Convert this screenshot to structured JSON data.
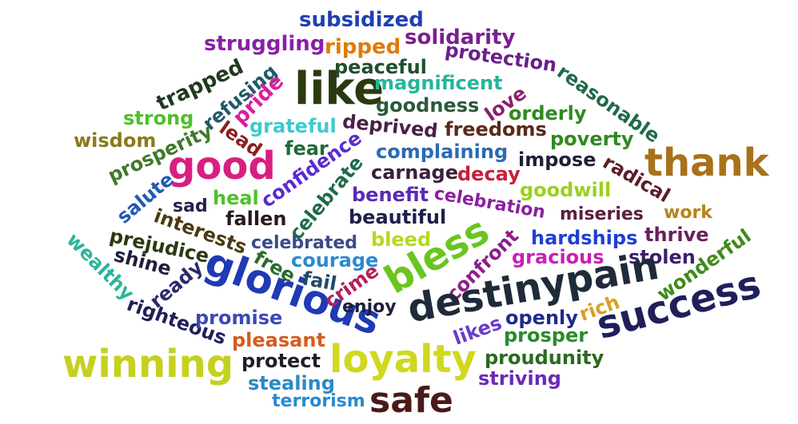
{
  "words": [
    {
      "text": "subsidized",
      "color": "#1f3fb5",
      "weight": 26
    },
    {
      "text": "struggling",
      "color": "#8a1fa8",
      "weight": 26
    },
    {
      "text": "ripped",
      "color": "#e07a0a",
      "weight": 26
    },
    {
      "text": "solidarity",
      "color": "#7a1f8f",
      "weight": 26
    },
    {
      "text": "peaceful",
      "color": "#1f4f2f",
      "weight": 24
    },
    {
      "text": "protection",
      "color": "#6a1f8a",
      "weight": 24
    },
    {
      "text": "like",
      "color": "#2a3a10",
      "weight": 56
    },
    {
      "text": "magnificent",
      "color": "#25b59a",
      "weight": 24
    },
    {
      "text": "goodness",
      "color": "#2a5a3a",
      "weight": 24
    },
    {
      "text": "trapped",
      "color": "#1f3a1f",
      "weight": 26
    },
    {
      "text": "refusing",
      "color": "#1f5a6a",
      "weight": 24
    },
    {
      "text": "pride",
      "color": "#d81fa0",
      "weight": 26
    },
    {
      "text": "reasonable",
      "color": "#1f6a4a",
      "weight": 24
    },
    {
      "text": "love",
      "color": "#8a1f6a",
      "weight": 24
    },
    {
      "text": "orderly",
      "color": "#2f8a1f",
      "weight": 24
    },
    {
      "text": "strong",
      "color": "#4fbf2a",
      "weight": 24
    },
    {
      "text": "grateful",
      "color": "#3fc9d0",
      "weight": 24
    },
    {
      "text": "deprived",
      "color": "#4a1f4a",
      "weight": 24
    },
    {
      "text": "freedoms",
      "color": "#5a2a1a",
      "weight": 24
    },
    {
      "text": "wisdom",
      "color": "#8a7a1a",
      "weight": 24
    },
    {
      "text": "lead",
      "color": "#8a1f1f",
      "weight": 24
    },
    {
      "text": "poverty",
      "color": "#2f8a1f",
      "weight": 24
    },
    {
      "text": "prosperity",
      "color": "#3f7a2a",
      "weight": 24
    },
    {
      "text": "fear",
      "color": "#1f6a3a",
      "weight": 24
    },
    {
      "text": "complaining",
      "color": "#2a6ab5",
      "weight": 24
    },
    {
      "text": "thank",
      "color": "#a8721a",
      "weight": 48
    },
    {
      "text": "good",
      "color": "#d81f80",
      "weight": 48
    },
    {
      "text": "confidence",
      "color": "#5a2ad0",
      "weight": 24
    },
    {
      "text": "impose",
      "color": "#1f1f3a",
      "weight": 24
    },
    {
      "text": "radical",
      "color": "#5a1f2a",
      "weight": 24
    },
    {
      "text": "carnage",
      "color": "#3a1f3a",
      "weight": 24
    },
    {
      "text": "decay",
      "color": "#c81f3a",
      "weight": 24
    },
    {
      "text": "salute",
      "color": "#1f5ab5",
      "weight": 24
    },
    {
      "text": "celebrate",
      "color": "#1f6a4a",
      "weight": 24
    },
    {
      "text": "benefit",
      "color": "#5a2ab5",
      "weight": 24
    },
    {
      "text": "goodwill",
      "color": "#9ad01f",
      "weight": 24
    },
    {
      "text": "sad",
      "color": "#2a1f4a",
      "weight": 22
    },
    {
      "text": "heal",
      "color": "#4fbf2a",
      "weight": 24
    },
    {
      "text": "celebration",
      "color": "#8a1fa0",
      "weight": 22
    },
    {
      "text": "interests",
      "color": "#4a3a10",
      "weight": 24
    },
    {
      "text": "fallen",
      "color": "#2a1a1a",
      "weight": 24
    },
    {
      "text": "beautiful",
      "color": "#1f1f4a",
      "weight": 24
    },
    {
      "text": "miseries",
      "color": "#5a1f3a",
      "weight": 22
    },
    {
      "text": "work",
      "color": "#b5841a",
      "weight": 22
    },
    {
      "text": "prejudice",
      "color": "#2a3a10",
      "weight": 24
    },
    {
      "text": "wealthy",
      "color": "#2ab59a",
      "weight": 24
    },
    {
      "text": "celebrated",
      "color": "#3a4a8a",
      "weight": 22
    },
    {
      "text": "bleed",
      "color": "#b5d81f",
      "weight": 24
    },
    {
      "text": "hardships",
      "color": "#1f3fd0",
      "weight": 24
    },
    {
      "text": "thrive",
      "color": "#6a1f5a",
      "weight": 24
    },
    {
      "text": "bless",
      "color": "#6ac51f",
      "weight": 48
    },
    {
      "text": "confront",
      "color": "#8a1f8a",
      "weight": 24
    },
    {
      "text": "wonderful",
      "color": "#3f8a1a",
      "weight": 24
    },
    {
      "text": "shine",
      "color": "#1f1f3a",
      "weight": 24
    },
    {
      "text": "free",
      "color": "#2a6a2a",
      "weight": 24
    },
    {
      "text": "courage",
      "color": "#2a8ad0",
      "weight": 24
    },
    {
      "text": "gracious",
      "color": "#c81fb5",
      "weight": 24
    },
    {
      "text": "stolen",
      "color": "#3a1f6a",
      "weight": 24
    },
    {
      "text": "ready",
      "color": "#2a2a6a",
      "weight": 24
    },
    {
      "text": "glorious",
      "color": "#1f3ab5",
      "weight": 50
    },
    {
      "text": "fail",
      "color": "#1f4a6a",
      "weight": 24
    },
    {
      "text": "crime",
      "color": "#b51f5a",
      "weight": 24
    },
    {
      "text": "destinypain",
      "color": "#1f2a3a",
      "weight": 48
    },
    {
      "text": "rich",
      "color": "#d8a01f",
      "weight": 24
    },
    {
      "text": "success",
      "color": "#1f1f5a",
      "weight": 48
    },
    {
      "text": "righteous",
      "color": "#1f1f5a",
      "weight": 24
    },
    {
      "text": "promise",
      "color": "#3a4ab5",
      "weight": 24
    },
    {
      "text": "enjoy",
      "color": "#1f1f3a",
      "weight": 22
    },
    {
      "text": "openly",
      "color": "#1f2a8a",
      "weight": 24
    },
    {
      "text": "likes",
      "color": "#6a3ad0",
      "weight": 24
    },
    {
      "text": "prosper",
      "color": "#2a8a2a",
      "weight": 24
    },
    {
      "text": "pleasant",
      "color": "#d85a1f",
      "weight": 24
    },
    {
      "text": "winning",
      "color": "#c5d01f",
      "weight": 48
    },
    {
      "text": "protect",
      "color": "#1f1f2a",
      "weight": 24
    },
    {
      "text": "loyalty",
      "color": "#d0d81f",
      "weight": 48
    },
    {
      "text": "proudunity",
      "color": "#2a6a1f",
      "weight": 24
    },
    {
      "text": "stealing",
      "color": "#2a8ac5",
      "weight": 24
    },
    {
      "text": "striving",
      "color": "#6a2ab5",
      "weight": 24
    },
    {
      "text": "terrorism",
      "color": "#2a8ad0",
      "weight": 22
    },
    {
      "text": "safe",
      "color": "#4a1a1a",
      "weight": 44
    }
  ]
}
